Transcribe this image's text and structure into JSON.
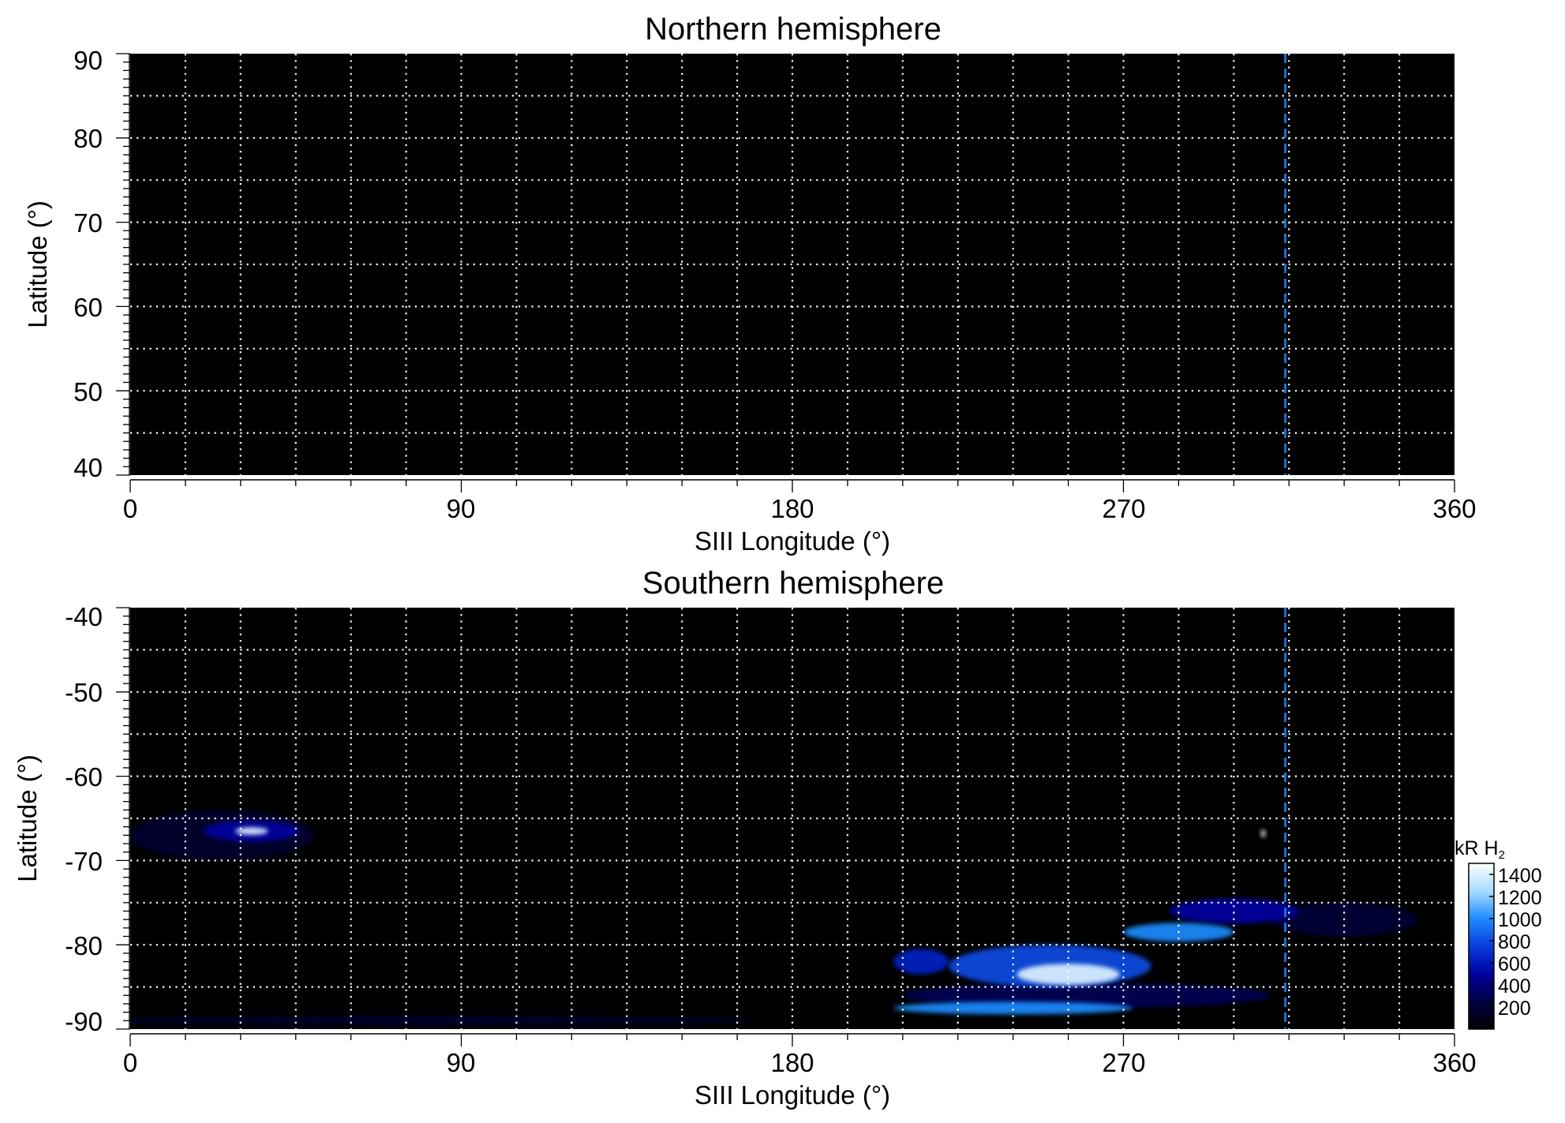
{
  "chart_data": [
    {
      "type": "heatmap",
      "title": "Northern hemisphere",
      "xlabel": "SIII Longitude (°)",
      "ylabel": "Latitude (°)",
      "xlim": [
        0,
        360
      ],
      "ylim": [
        40,
        90
      ],
      "xticks": [
        "0",
        "90",
        "180",
        "270",
        "360"
      ],
      "yticks": [
        "40",
        "50",
        "60",
        "70",
        "80",
        "90"
      ],
      "grid": true,
      "grid_x_step": 15,
      "grid_y_step": 5,
      "marker_longitude": 314,
      "emission_regions": []
    },
    {
      "type": "heatmap",
      "title": "Southern hemisphere",
      "xlabel": "SIII Longitude (°)",
      "ylabel": "Latitude (°)",
      "xlim": [
        0,
        360
      ],
      "ylim": [
        -90,
        -40
      ],
      "xticks": [
        "0",
        "90",
        "180",
        "270",
        "360"
      ],
      "yticks": [
        "-40",
        "-50",
        "-60",
        "-70",
        "-80",
        "-90"
      ],
      "grid": true,
      "grid_x_step": 15,
      "grid_y_step": 5,
      "marker_longitude": 314,
      "emission_regions": [
        {
          "lon": 33,
          "lat": -66.5,
          "dlon": 9,
          "dlat": 0.9,
          "intensity": 1400
        },
        {
          "lon": 33,
          "lat": -66.5,
          "dlon": 26,
          "dlat": 2.5,
          "intensity": 500
        },
        {
          "lon": 25,
          "lat": -67,
          "dlon": 50,
          "dlat": 6,
          "intensity": 180
        },
        {
          "lon": 308,
          "lat": -66.8,
          "dlon": 1.3,
          "dlat": 0.9,
          "intensity": 1400
        },
        {
          "lon": 255,
          "lat": -83.5,
          "dlon": 28,
          "dlat": 2.5,
          "intensity": 1400
        },
        {
          "lon": 250,
          "lat": -82.5,
          "dlon": 55,
          "dlat": 5,
          "intensity": 800
        },
        {
          "lon": 285,
          "lat": -78.5,
          "dlon": 30,
          "dlat": 2.2,
          "intensity": 1000
        },
        {
          "lon": 300,
          "lat": -76,
          "dlon": 35,
          "dlat": 3,
          "intensity": 500
        },
        {
          "lon": 240,
          "lat": -87.5,
          "dlon": 65,
          "dlat": 1.5,
          "intensity": 1000
        },
        {
          "lon": 260,
          "lat": -86,
          "dlon": 100,
          "dlat": 3,
          "intensity": 300
        },
        {
          "lon": 215,
          "lat": -82,
          "dlon": 15,
          "dlat": 3,
          "intensity": 650
        },
        {
          "lon": 330,
          "lat": -77,
          "dlon": 40,
          "dlat": 4,
          "intensity": 220
        },
        {
          "lon": 80,
          "lat": -89,
          "dlon": 180,
          "dlat": 1.2,
          "intensity": 170
        }
      ]
    }
  ],
  "colorbar": {
    "unit": "kR H",
    "unit_subscript": "2",
    "ticks": [
      "1400",
      "1200",
      "1000",
      "800",
      "600",
      "400",
      "200"
    ],
    "range": [
      0,
      1500
    ],
    "colors": [
      "#000000",
      "#00003f",
      "#0000a0",
      "#0a3cdc",
      "#1f8cff",
      "#a8dcff",
      "#ffffff"
    ]
  },
  "colors": {
    "background": "#000000",
    "grid": "#ffffff",
    "marker": "#1f6fd0"
  }
}
